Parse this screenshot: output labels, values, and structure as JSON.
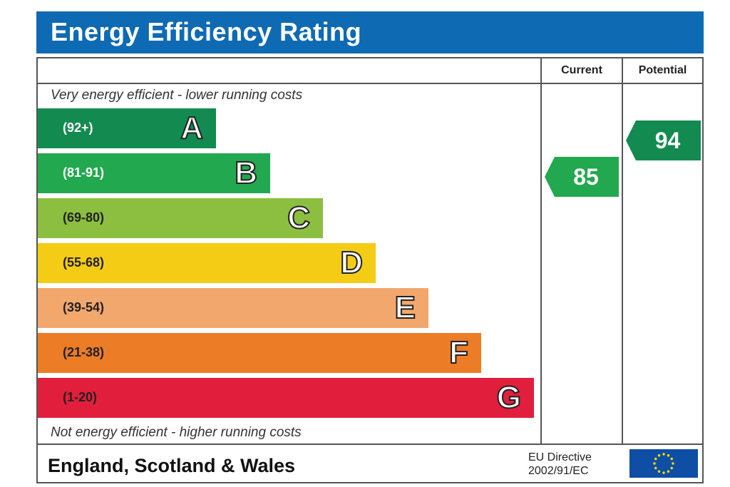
{
  "header": {
    "title": "Energy Efficiency Rating"
  },
  "columns": {
    "current": "Current",
    "potential": "Potential"
  },
  "notes": {
    "top": "Very energy efficient - lower running costs",
    "bottom": "Not energy efficient - higher running costs"
  },
  "footer": {
    "country": "England, Scotland & Wales",
    "directive_line1": "EU Directive",
    "directive_line2": "2002/91/EC",
    "flag_icon": "eu-flag-icon"
  },
  "chart_data": {
    "type": "bar",
    "categories": [
      "A",
      "B",
      "C",
      "D",
      "E",
      "F",
      "G"
    ],
    "ranges": [
      "(92+)",
      "(81-91)",
      "(69-80)",
      "(55-68)",
      "(39-54)",
      "(21-38)",
      "(1-20)"
    ],
    "colors": [
      "#138a4f",
      "#22a94f",
      "#8cbe3f",
      "#f4cc16",
      "#f2a86c",
      "#ec7c26",
      "#e11f3c"
    ],
    "range_text_colors": [
      "#ffffff",
      "#ffffff",
      "#222222",
      "#222222",
      "#222222",
      "#222222",
      "#222222"
    ],
    "current": {
      "value": 85,
      "band": "B",
      "color": "#22a94f"
    },
    "potential": {
      "value": 94,
      "band": "A",
      "color": "#138a4f"
    }
  }
}
